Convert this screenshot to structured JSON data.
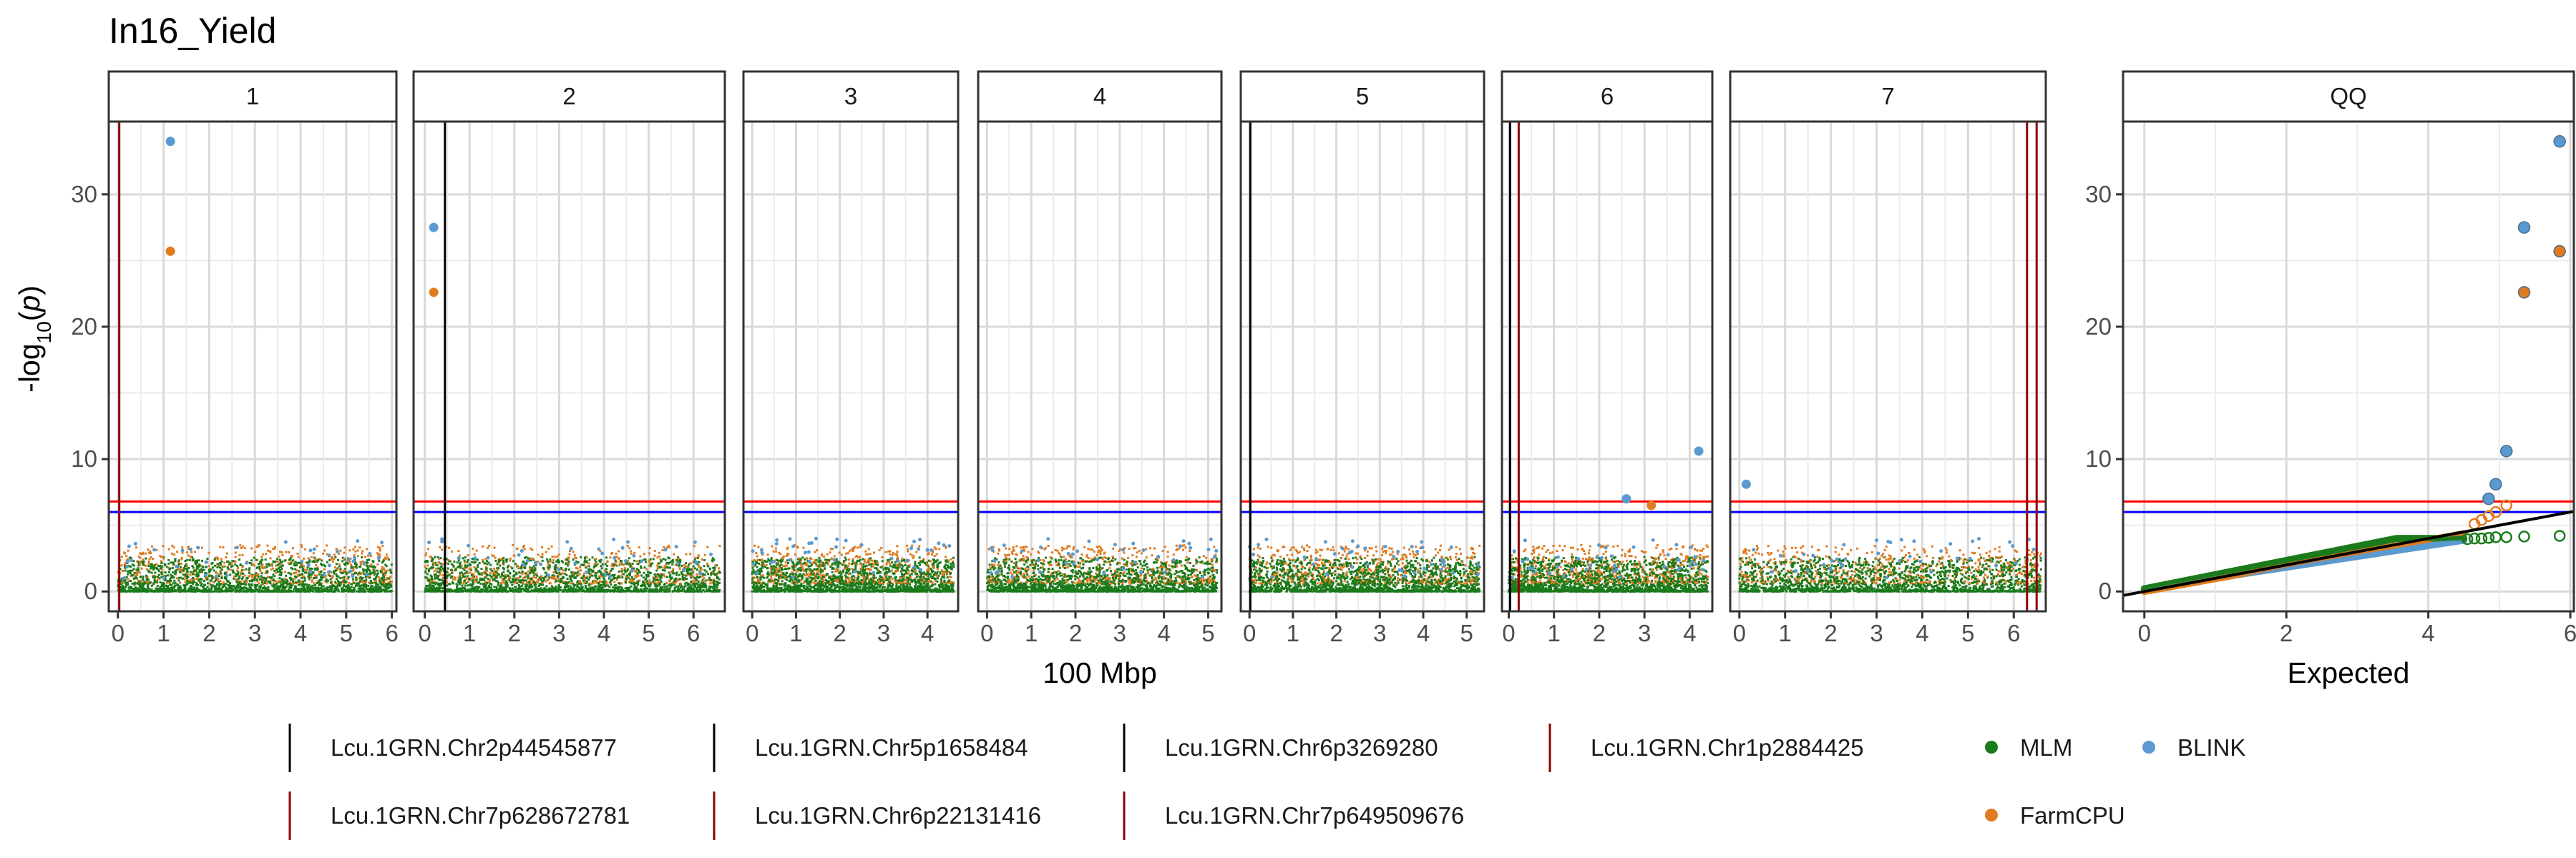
{
  "chart_data": {
    "type": "scatter",
    "title": "In16_Yield",
    "xlabel": "100 Mbp",
    "ylabel": "-log10(p)",
    "qq_xlabel": "Expected",
    "ylim": [
      -1.5,
      35.5
    ],
    "yticks": [
      0,
      10,
      20,
      30
    ],
    "thresholds": [
      {
        "value": 6.8,
        "color": "#ff0000"
      },
      {
        "value": 6.0,
        "color": "#0000ff"
      }
    ],
    "series_colors": {
      "MLM": "#1b7a1b",
      "FarmCPU": "#e07b20",
      "BLINK": "#5a9ad0"
    },
    "facets": [
      {
        "label": "1",
        "xlim": [
          -0.2,
          6.1
        ],
        "xticks": [
          0,
          1,
          2,
          3,
          4,
          5,
          6
        ],
        "markers": [
          {
            "x": 0.03,
            "color": "#8b0000"
          }
        ],
        "points": [
          {
            "series": "BLINK",
            "x": 1.15,
            "y": 34.0
          },
          {
            "series": "FarmCPU",
            "x": 1.15,
            "y": 25.7
          }
        ]
      },
      {
        "label": "2",
        "xlim": [
          -0.25,
          6.7
        ],
        "xticks": [
          0,
          1,
          2,
          3,
          4,
          5,
          6
        ],
        "markers": [
          {
            "x": 0.45,
            "color": "#000000"
          }
        ],
        "points": [
          {
            "series": "BLINK",
            "x": 0.2,
            "y": 27.5
          },
          {
            "series": "FarmCPU",
            "x": 0.2,
            "y": 22.6
          }
        ]
      },
      {
        "label": "3",
        "xlim": [
          -0.2,
          4.7
        ],
        "xticks": [
          0,
          1,
          2,
          3,
          4
        ],
        "markers": [],
        "points": []
      },
      {
        "label": "4",
        "xlim": [
          -0.2,
          5.3
        ],
        "xticks": [
          0,
          1,
          2,
          3,
          4,
          5
        ],
        "markers": [],
        "points": []
      },
      {
        "label": "5",
        "xlim": [
          -0.2,
          5.4
        ],
        "xticks": [
          0,
          1,
          2,
          3,
          4,
          5
        ],
        "markers": [
          {
            "x": 0.02,
            "color": "#000000"
          }
        ],
        "points": []
      },
      {
        "label": "6",
        "xlim": [
          -0.15,
          4.5
        ],
        "xticks": [
          0,
          1,
          2,
          3,
          4
        ],
        "markers": [
          {
            "x": 0.03,
            "color": "#000000"
          },
          {
            "x": 0.22,
            "color": "#8b0000"
          }
        ],
        "points": [
          {
            "series": "BLINK",
            "x": 2.6,
            "y": 7.0
          },
          {
            "series": "FarmCPU",
            "x": 3.15,
            "y": 6.5
          },
          {
            "series": "BLINK",
            "x": 4.2,
            "y": 10.6
          }
        ]
      },
      {
        "label": "7",
        "xlim": [
          -0.2,
          6.7
        ],
        "xticks": [
          0,
          1,
          2,
          3,
          4,
          5,
          6
        ],
        "markers": [
          {
            "x": 6.29,
            "color": "#8b0000"
          },
          {
            "x": 6.5,
            "color": "#8b0000"
          }
        ],
        "points": [
          {
            "series": "BLINK",
            "x": 0.15,
            "y": 8.1
          }
        ]
      }
    ],
    "qq": {
      "label": "QQ",
      "xlim": [
        -0.3,
        6.05
      ],
      "xticks": [
        0,
        2,
        4,
        6
      ],
      "large_points": [
        {
          "series": "BLINK",
          "x": 5.85,
          "y": 34.0
        },
        {
          "series": "BLINK",
          "x": 5.35,
          "y": 27.5
        },
        {
          "series": "FarmCPU",
          "x": 5.85,
          "y": 25.7
        },
        {
          "series": "FarmCPU",
          "x": 5.35,
          "y": 22.6
        },
        {
          "series": "BLINK",
          "x": 5.1,
          "y": 10.6
        },
        {
          "series": "BLINK",
          "x": 4.95,
          "y": 8.1
        },
        {
          "series": "BLINK",
          "x": 4.85,
          "y": 7.0
        }
      ],
      "open_points": [
        {
          "series": "FarmCPU",
          "x": 5.1,
          "y": 6.5
        },
        {
          "series": "FarmCPU",
          "x": 4.95,
          "y": 6.0
        },
        {
          "series": "FarmCPU",
          "x": 4.85,
          "y": 5.7
        },
        {
          "series": "FarmCPU",
          "x": 4.75,
          "y": 5.4
        },
        {
          "series": "FarmCPU",
          "x": 4.65,
          "y": 5.1
        },
        {
          "series": "MLM",
          "x": 5.85,
          "y": 4.2
        },
        {
          "series": "MLM",
          "x": 5.35,
          "y": 4.15
        },
        {
          "series": "MLM",
          "x": 5.1,
          "y": 4.1
        },
        {
          "series": "MLM",
          "x": 4.95,
          "y": 4.1
        },
        {
          "series": "MLM",
          "x": 4.85,
          "y": 4.05
        },
        {
          "series": "MLM",
          "x": 4.75,
          "y": 4.0
        },
        {
          "series": "MLM",
          "x": 4.65,
          "y": 4.0
        },
        {
          "series": "MLM",
          "x": 4.55,
          "y": 3.95
        }
      ],
      "reference_line": {
        "x": [
          -0.3,
          6.05
        ],
        "y": [
          -0.3,
          6.05
        ],
        "color": "#000000"
      }
    },
    "legend": {
      "markers": [
        {
          "name": "Lcu.1GRN.Chr2p44545877",
          "color": "#000000"
        },
        {
          "name": "Lcu.1GRN.Chr5p1658484",
          "color": "#000000"
        },
        {
          "name": "Lcu.1GRN.Chr6p3269280",
          "color": "#000000"
        },
        {
          "name": "Lcu.1GRN.Chr1p2884425",
          "color": "#8b0000"
        },
        {
          "name": "Lcu.1GRN.Chr7p628672781",
          "color": "#8b0000"
        },
        {
          "name": "Lcu.1GRN.Chr6p22131416",
          "color": "#8b0000"
        },
        {
          "name": "Lcu.1GRN.Chr7p649509676",
          "color": "#8b0000"
        }
      ],
      "series": [
        {
          "name": "MLM",
          "color": "#1b7a1b"
        },
        {
          "name": "BLINK",
          "color": "#5a9ad0"
        },
        {
          "name": "FarmCPU",
          "color": "#e07b20"
        }
      ]
    }
  }
}
